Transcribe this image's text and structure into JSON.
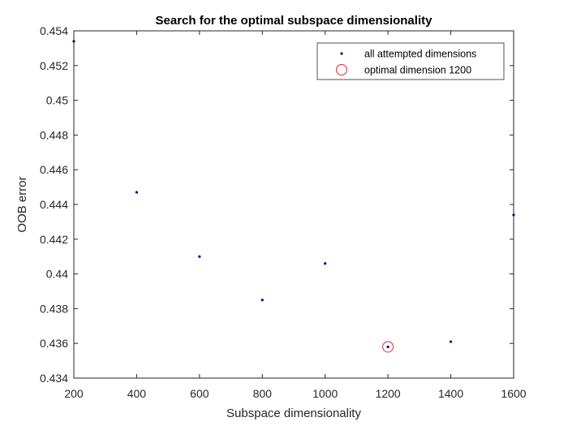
{
  "chart_data": {
    "type": "scatter",
    "title": "Search for the optimal subspace dimensionality",
    "xlabel": "Subspace dimensionality",
    "ylabel": "OOB error",
    "xlim": [
      200,
      1600
    ],
    "ylim": [
      0.434,
      0.454
    ],
    "xticks": [
      200,
      400,
      600,
      800,
      1000,
      1200,
      1400,
      1600
    ],
    "xtick_labels": [
      "200",
      "400",
      "600",
      "800",
      "1000",
      "1200",
      "1400",
      "1600"
    ],
    "yticks": [
      0.434,
      0.436,
      0.438,
      0.44,
      0.442,
      0.444,
      0.446,
      0.448,
      0.45,
      0.452,
      0.454
    ],
    "ytick_labels": [
      "0.434",
      "0.436",
      "0.438",
      "0.44",
      "0.442",
      "0.444",
      "0.446",
      "0.448",
      "0.45",
      "0.452",
      "0.454"
    ],
    "grid": false,
    "legend_position": "top-right",
    "series": [
      {
        "name": "all attempted dimensions",
        "marker": "dot",
        "color": "#0000b3",
        "x": [
          200,
          400,
          600,
          800,
          1000,
          1200,
          1400,
          1600
        ],
        "y": [
          0.4534,
          0.4447,
          0.441,
          0.4385,
          0.4406,
          0.4358,
          0.4361,
          0.4434
        ]
      },
      {
        "name": "optimal dimension 1200",
        "marker": "circle",
        "color": "#e8242a",
        "x": [
          1200
        ],
        "y": [
          0.4358
        ]
      }
    ]
  }
}
